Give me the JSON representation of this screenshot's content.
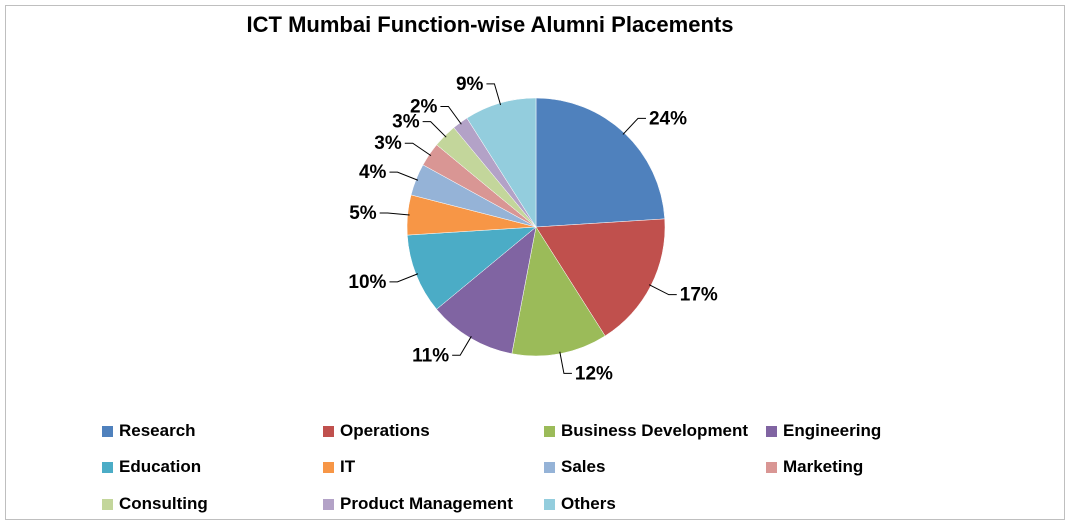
{
  "chart_data": {
    "type": "pie",
    "title": "ICT Mumbai Function-wise Alumni Placements",
    "categories": [
      "Research",
      "Operations",
      "Business Development",
      "Engineering",
      "Education",
      "IT",
      "Sales",
      "Marketing",
      "Consulting",
      "Product Management",
      "Others"
    ],
    "values": [
      24,
      17,
      12,
      11,
      10,
      5,
      4,
      3,
      3,
      2,
      9
    ],
    "labels": [
      "24%",
      "17%",
      "12%",
      "11%",
      "10%",
      "5%",
      "4%",
      "3%",
      "3%",
      "2%",
      "9%"
    ],
    "colors": [
      "#4F81BD",
      "#C0504D",
      "#9BBB59",
      "#8064A2",
      "#4BACC6",
      "#F79646",
      "#95B3D7",
      "#D99694",
      "#C3D69B",
      "#B3A2C7",
      "#93CDDD"
    ],
    "start": "12 o'clock, clockwise",
    "legend_position": "bottom"
  }
}
